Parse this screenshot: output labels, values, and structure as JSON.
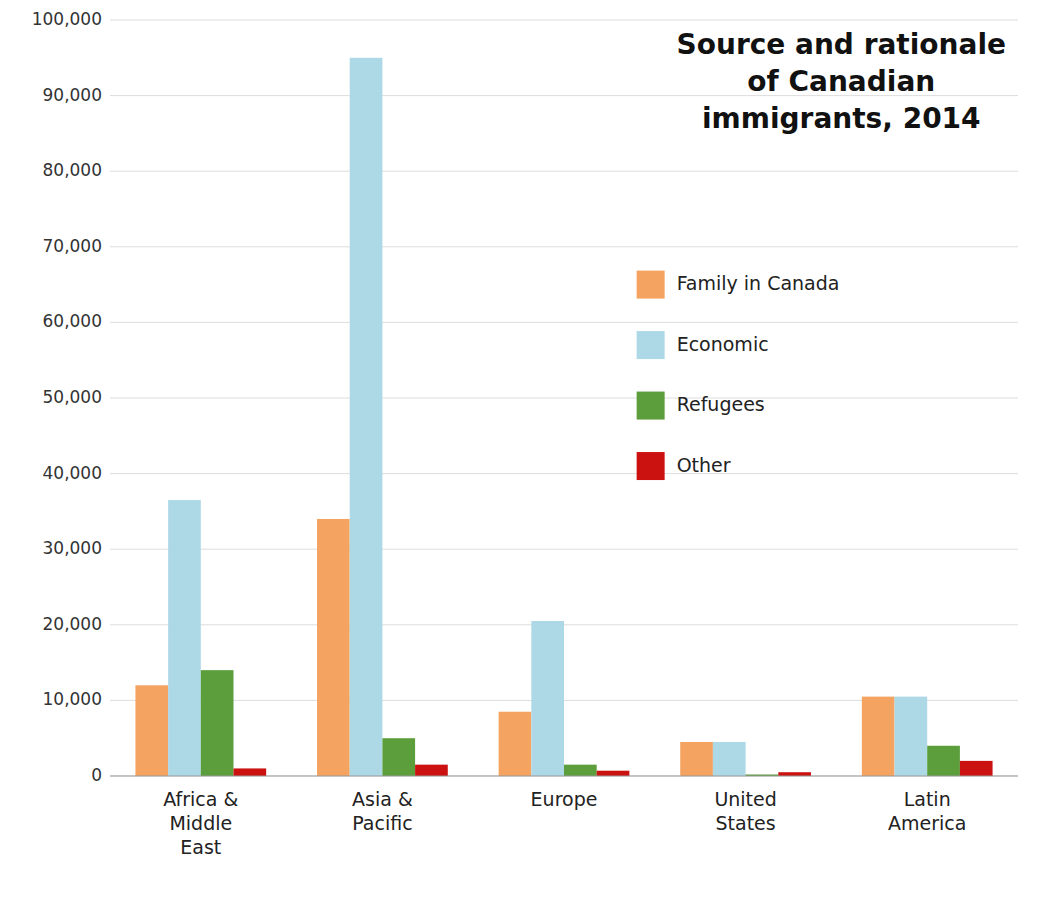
{
  "chart_data": {
    "type": "bar",
    "title": "Source and rationale\nof Canadian\nimmigrants, 2014",
    "categories": [
      "Africa &\nMiddle\nEast",
      "Asia &\nPacific",
      "Europe",
      "United\nStates",
      "Latin\nAmerica"
    ],
    "series": [
      {
        "name": "Family in Canada",
        "color": "#F4A460",
        "values": [
          12000,
          34000,
          8500,
          4500,
          10500
        ]
      },
      {
        "name": "Economic",
        "color": "#ADD8E6",
        "values": [
          36500,
          95000,
          20500,
          4500,
          10500
        ]
      },
      {
        "name": "Refugees",
        "color": "#5B9E3B",
        "values": [
          14000,
          5000,
          1500,
          200,
          4000
        ]
      },
      {
        "name": "Other",
        "color": "#CC1111",
        "values": [
          1000,
          1500,
          700,
          500,
          2000
        ]
      }
    ],
    "ylim": [
      0,
      100000
    ],
    "yticks": [
      0,
      {
        "value": 10000,
        "label": "10,000"
      },
      {
        "value": 20000,
        "label": "20,000"
      },
      {
        "value": 30000,
        "label": "30,000"
      },
      {
        "value": 40000,
        "label": "40,000"
      },
      {
        "value": 50000,
        "label": "50,000"
      },
      {
        "value": 60000,
        "label": "60,000"
      },
      {
        "value": 70000,
        "label": "70,000"
      },
      {
        "value": 80000,
        "label": "80,000"
      },
      {
        "value": 90000,
        "label": "90,000"
      },
      {
        "value": 100000,
        "label": "100,000"
      }
    ],
    "grid": true,
    "legend": "upper right"
  }
}
